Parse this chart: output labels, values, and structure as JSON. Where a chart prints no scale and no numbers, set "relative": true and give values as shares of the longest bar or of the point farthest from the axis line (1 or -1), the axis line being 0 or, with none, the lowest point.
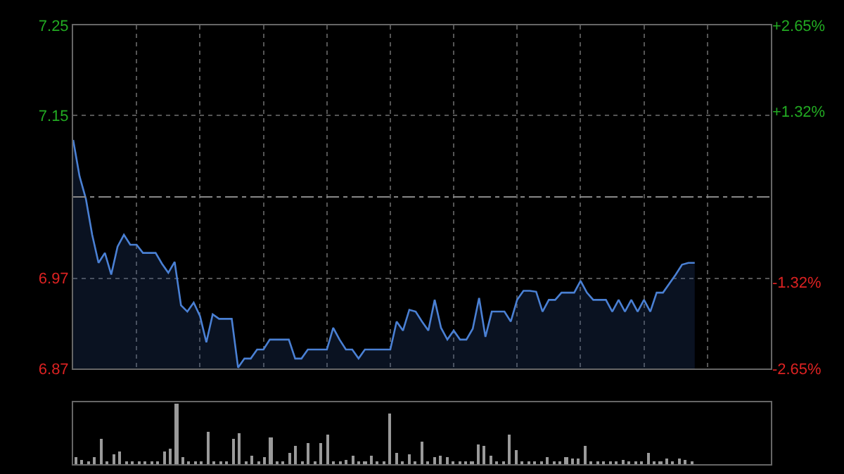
{
  "chart_data": [
    {
      "type": "area",
      "categories": [
        null,
        null,
        null,
        null,
        null,
        null,
        null,
        null,
        null,
        null,
        null,
        null,
        null,
        null,
        null,
        null,
        null,
        null,
        null,
        null,
        null,
        null,
        null,
        null,
        null,
        null,
        null,
        null,
        null,
        null,
        null,
        null,
        null,
        null,
        null,
        null,
        null,
        null,
        null,
        null,
        null,
        null,
        null,
        null,
        null,
        null,
        null,
        null,
        null,
        null,
        null,
        null,
        null,
        null,
        null,
        null,
        null,
        null,
        null,
        null,
        null,
        null,
        null,
        null,
        null,
        null,
        null,
        null,
        null,
        null,
        null,
        null,
        null,
        null,
        null,
        null,
        null,
        null,
        null,
        null,
        null,
        null,
        null,
        null,
        null,
        null,
        null,
        null,
        null,
        null,
        null,
        null,
        null,
        null,
        null,
        null,
        null,
        null,
        null,
        null,
        null,
        null,
        null,
        null,
        null,
        null,
        null,
        null,
        null,
        null,
        null
      ],
      "series": [
        {
          "color": "#4a80d4",
          "values": [
            7.123,
            7.083,
            7.058,
            7.018,
            6.987,
            6.998,
            6.974,
            7.005,
            7.018,
            7.007,
            7.007,
            6.998,
            6.998,
            6.998,
            6.986,
            6.976,
            6.988,
            6.94,
            6.933,
            6.943,
            6.928,
            6.899,
            6.93,
            6.925,
            6.925,
            6.925,
            6.871,
            6.881,
            6.881,
            6.891,
            6.891,
            6.902,
            6.902,
            6.902,
            6.902,
            6.881,
            6.881,
            6.891,
            6.891,
            6.891,
            6.891,
            6.915,
            6.902,
            6.891,
            6.891,
            6.881,
            6.891,
            6.891,
            6.891,
            6.891,
            6.891,
            6.922,
            6.912,
            6.935,
            6.933,
            6.922,
            6.912,
            6.946,
            6.915,
            6.902,
            6.912,
            6.902,
            6.902,
            6.914,
            6.948,
            6.905,
            6.933,
            6.933,
            6.933,
            6.922,
            6.946,
            6.956,
            6.956,
            6.955,
            6.933,
            6.946,
            6.946,
            6.954,
            6.954,
            6.954,
            6.967,
            6.954,
            6.946,
            6.946,
            6.946,
            6.933,
            6.946,
            6.933,
            6.946,
            6.933,
            6.946,
            6.933,
            6.954,
            6.954,
            6.964,
            6.974,
            6.985,
            6.987,
            6.987,
            null,
            null,
            null,
            null,
            null,
            null,
            null,
            null,
            null,
            null,
            null,
            null
          ]
        }
      ],
      "ylim": [
        6.87,
        7.25
      ],
      "yticks": [
        6.87,
        6.97,
        7.15,
        7.25
      ],
      "y2lim": [
        -2.65,
        2.65
      ],
      "y2ticks": [
        {
          "value": -2.65,
          "label": "-2.65%"
        },
        {
          "value": -1.32,
          "label": "-1.32%"
        },
        {
          "value": 1.32,
          "label": "+1.32%"
        },
        {
          "value": 2.65,
          "label": "+2.65%"
        }
      ],
      "ref_lines": [
        {
          "axis": "y",
          "value": 7.06,
          "color": "#888888",
          "line_style": "dashed"
        }
      ],
      "grid": true,
      "tick_labels": "y"
    },
    {
      "type": "bar",
      "relative": true,
      "categories": [
        null,
        null,
        null,
        null,
        null,
        null,
        null,
        null,
        null,
        null,
        null,
        null,
        null,
        null,
        null,
        null,
        null,
        null,
        null,
        null,
        null,
        null,
        null,
        null,
        null,
        null,
        null,
        null,
        null,
        null,
        null,
        null,
        null,
        null,
        null,
        null,
        null,
        null,
        null,
        null,
        null,
        null,
        null,
        null,
        null,
        null,
        null,
        null,
        null,
        null,
        null,
        null,
        null,
        null,
        null,
        null,
        null,
        null,
        null,
        null,
        null,
        null,
        null,
        null,
        null,
        null,
        null,
        null,
        null,
        null,
        null,
        null,
        null,
        null,
        null,
        null,
        null,
        null,
        null,
        null,
        null,
        null,
        null,
        null,
        null,
        null,
        null,
        null,
        null,
        null,
        null,
        null,
        null,
        null,
        null,
        null,
        null,
        null,
        null,
        null,
        null,
        null,
        null,
        null,
        null,
        null,
        null,
        null,
        null,
        null,
        null
      ],
      "series": [
        {
          "color": "#9a9a9a",
          "values": [
            0.11,
            0.07,
            0.03,
            0.11,
            0.41,
            0.03,
            0.16,
            0.21,
            0.03,
            0.03,
            0.05,
            0.03,
            0.05,
            0.03,
            0.21,
            0.25,
            1,
            0.11,
            0.03,
            0.05,
            0.05,
            0.54,
            0.03,
            0.03,
            0.05,
            0.41,
            0.52,
            0.03,
            0.14,
            0.03,
            0.12,
            0.45,
            0.03,
            0.03,
            0.19,
            0.29,
            0.03,
            0.34,
            0.03,
            0.34,
            0.48,
            0.03,
            0.03,
            0.07,
            0.14,
            0.05,
            0.03,
            0.14,
            0.03,
            0.05,
            0.84,
            0.18,
            0.03,
            0.16,
            0.03,
            0.38,
            0.03,
            0.12,
            0.14,
            0.12,
            0.03,
            0.03,
            0.03,
            0.03,
            0.32,
            0.29,
            0.14,
            0.03,
            0.03,
            0.48,
            0.24,
            0.05,
            0.03,
            0.05,
            0.03,
            0.12,
            0.03,
            0.03,
            0.12,
            0.09,
            0.09,
            0.29,
            0.03,
            0.05,
            0.03,
            0.05,
            0.03,
            0.07,
            0.03,
            0.03,
            0.03,
            0.19,
            0.03,
            0.03,
            0.09,
            0.03,
            0.09,
            0.07,
            0.05,
            null,
            null,
            null,
            null,
            null,
            null,
            null,
            null,
            null,
            null,
            null,
            null
          ]
        }
      ],
      "tick_labels": false
    }
  ]
}
